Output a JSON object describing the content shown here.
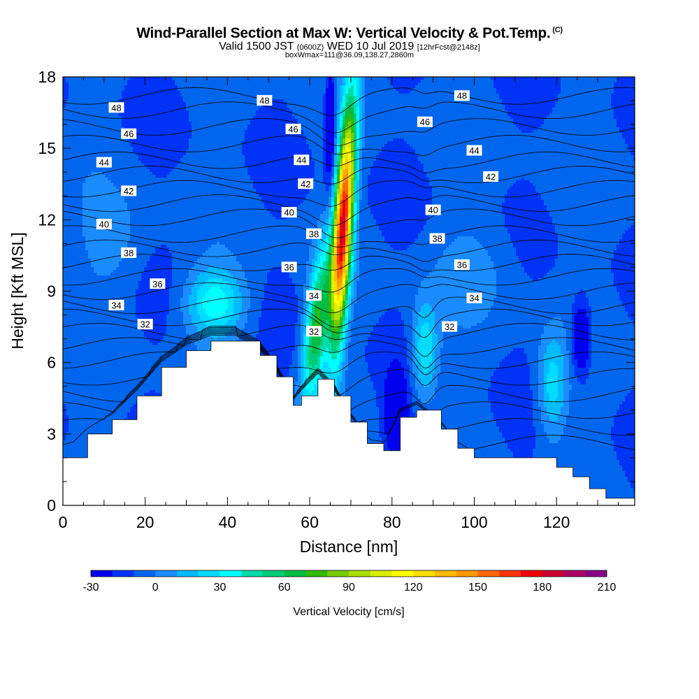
{
  "header": {
    "title": "Wind-Parallel Section at Max W: Vertical Velocity & Pot.Temp.",
    "title_mark": "(C)",
    "valid_pre": "Valid 1500 JST",
    "valid_z": "(0600Z)",
    "valid_date": "WED 10 Jul 2019",
    "forecast": "[12hrFcst@2148z]",
    "box_info": "boxWmax=111@36.09,138.27,2860m"
  },
  "chart_data": {
    "type": "heatmap",
    "xlabel": "Distance [nm]",
    "ylabel": "Height [Kft MSL]",
    "xlim": [
      0,
      139
    ],
    "ylim": [
      0,
      18
    ],
    "x_ticks": [
      0,
      20,
      40,
      60,
      80,
      100,
      120
    ],
    "y_ticks": [
      0,
      3,
      6,
      9,
      12,
      15,
      18
    ],
    "colorbar": {
      "label": "Vertical Velocity [cm/s]",
      "ticks": [
        -30,
        0,
        30,
        60,
        90,
        120,
        150,
        180,
        210
      ],
      "levels": [
        -30,
        -20,
        -10,
        0,
        10,
        20,
        30,
        40,
        50,
        60,
        70,
        80,
        90,
        100,
        110,
        120,
        130,
        140,
        150,
        160,
        170,
        180,
        190,
        200,
        210
      ],
      "colors": [
        "#0000ee",
        "#0033f5",
        "#0066ee",
        "#1a8cff",
        "#00bbff",
        "#00ddff",
        "#00ffff",
        "#00ddaa",
        "#00cc77",
        "#00bb44",
        "#33bb00",
        "#77cc00",
        "#aadd00",
        "#ddee00",
        "#ffff00",
        "#ffdd00",
        "#ffbb00",
        "#ff9900",
        "#ff6600",
        "#ff3300",
        "#ee0000",
        "#cc0033",
        "#aa0066",
        "#880088"
      ]
    },
    "terrain": {
      "x": [
        0,
        6,
        12,
        18,
        24,
        30,
        36,
        42,
        48,
        52,
        56,
        58,
        62,
        66,
        70,
        74,
        78,
        82,
        86,
        92,
        96,
        100,
        106,
        112,
        116,
        120,
        124,
        128,
        132,
        136,
        139
      ],
      "z": [
        2.0,
        3.0,
        3.6,
        4.6,
        5.8,
        6.5,
        6.9,
        6.9,
        6.3,
        5.4,
        4.2,
        4.6,
        5.3,
        4.6,
        3.5,
        2.6,
        2.3,
        3.7,
        4.0,
        3.2,
        2.4,
        2.0,
        2.0,
        2.0,
        2.0,
        1.6,
        1.2,
        0.7,
        0.3,
        0.3,
        0.3
      ]
    },
    "updrafts": [
      {
        "x": 68,
        "z": 11.5,
        "w": 175
      },
      {
        "x": 63,
        "z": 8.5,
        "w": 90
      },
      {
        "x": 58,
        "z": 6.0,
        "w": 60
      },
      {
        "x": 38,
        "z": 8.5,
        "w": 45
      },
      {
        "x": 88,
        "z": 6.5,
        "w": 35
      },
      {
        "x": 119,
        "z": 5.0,
        "w": 30
      }
    ],
    "downdrafts": [
      {
        "x": 65,
        "z": 16.0,
        "w": -30
      },
      {
        "x": 81,
        "z": 3.8,
        "w": -30
      },
      {
        "x": 126,
        "z": 7.0,
        "w": -30
      }
    ],
    "theta_contours": [
      {
        "theta": 48,
        "z": 17.2
      },
      {
        "theta": 47,
        "z": 16.6
      },
      {
        "theta": 46,
        "z": 15.9
      },
      {
        "theta": 45,
        "z": 15.2
      },
      {
        "theta": 44,
        "z": 14.5
      },
      {
        "theta": 43,
        "z": 13.9
      },
      {
        "theta": 42,
        "z": 13.3
      },
      {
        "theta": 41,
        "z": 12.7
      },
      {
        "theta": 40,
        "z": 12.1
      },
      {
        "theta": 39,
        "z": 11.4
      },
      {
        "theta": 38,
        "z": 10.8
      },
      {
        "theta": 37,
        "z": 10.2
      },
      {
        "theta": 36,
        "z": 9.6
      },
      {
        "theta": 35,
        "z": 9.0
      },
      {
        "theta": 34,
        "z": 8.4
      },
      {
        "theta": 33,
        "z": 7.9
      },
      {
        "theta": 32,
        "z": 7.3
      },
      {
        "theta": 31,
        "z": 6.7
      },
      {
        "theta": 30,
        "z": 6.1
      },
      {
        "theta": 29,
        "z": 5.4
      },
      {
        "theta": 28,
        "z": 4.7
      },
      {
        "theta": 27,
        "z": 4.0
      },
      {
        "theta": 26,
        "z": 3.3
      },
      {
        "theta": 25,
        "z": 2.6
      }
    ],
    "contour_labels": [
      {
        "text": "48",
        "x": 13,
        "z": 16.7
      },
      {
        "text": "48",
        "x": 49,
        "z": 17.0
      },
      {
        "text": "48",
        "x": 97,
        "z": 17.2
      },
      {
        "text": "46",
        "x": 16,
        "z": 15.6
      },
      {
        "text": "46",
        "x": 56,
        "z": 15.8
      },
      {
        "text": "46",
        "x": 88,
        "z": 16.1
      },
      {
        "text": "44",
        "x": 10,
        "z": 14.4
      },
      {
        "text": "44",
        "x": 58,
        "z": 14.5
      },
      {
        "text": "44",
        "x": 100,
        "z": 14.9
      },
      {
        "text": "42",
        "x": 16,
        "z": 13.2
      },
      {
        "text": "42",
        "x": 59,
        "z": 13.5
      },
      {
        "text": "42",
        "x": 104,
        "z": 13.8
      },
      {
        "text": "40",
        "x": 10,
        "z": 11.8
      },
      {
        "text": "40",
        "x": 55,
        "z": 12.3
      },
      {
        "text": "40",
        "x": 90,
        "z": 12.4
      },
      {
        "text": "38",
        "x": 16,
        "z": 10.6
      },
      {
        "text": "38",
        "x": 61,
        "z": 11.4
      },
      {
        "text": "38",
        "x": 91,
        "z": 11.2
      },
      {
        "text": "36",
        "x": 23,
        "z": 9.3
      },
      {
        "text": "36",
        "x": 55,
        "z": 10.0
      },
      {
        "text": "36",
        "x": 97,
        "z": 10.1
      },
      {
        "text": "34",
        "x": 13,
        "z": 8.4
      },
      {
        "text": "34",
        "x": 61,
        "z": 8.8
      },
      {
        "text": "34",
        "x": 100,
        "z": 8.7
      },
      {
        "text": "32",
        "x": 20,
        "z": 7.6
      },
      {
        "text": "32",
        "x": 61,
        "z": 7.3
      },
      {
        "text": "32",
        "x": 94,
        "z": 7.5
      }
    ]
  }
}
